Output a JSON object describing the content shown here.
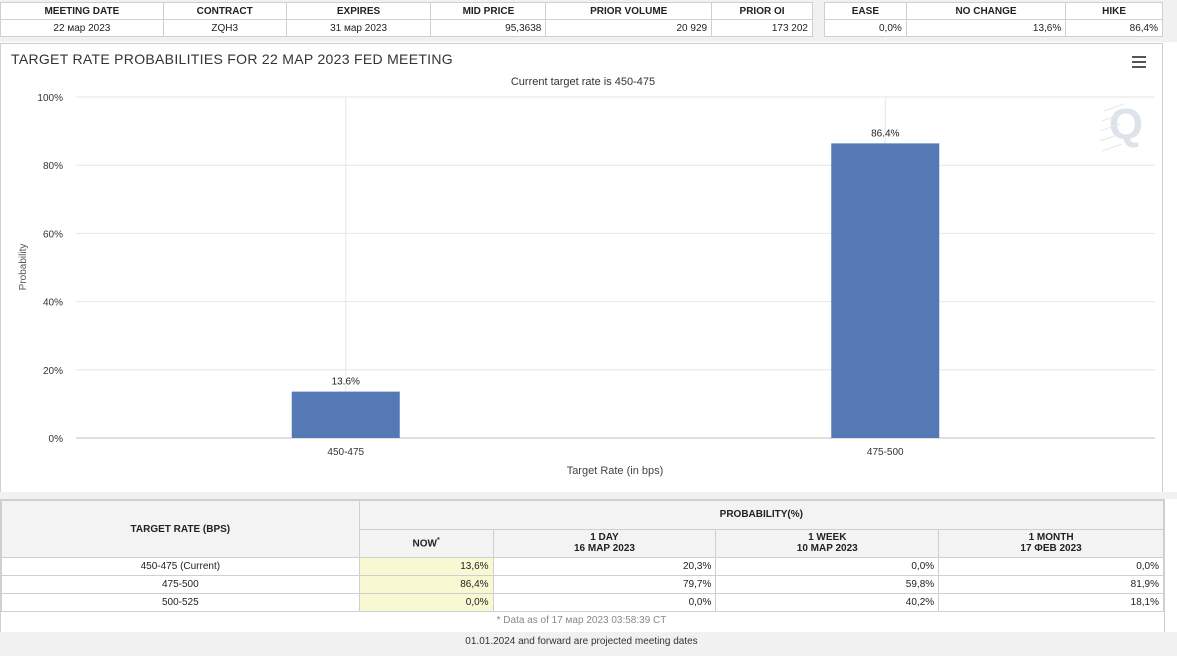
{
  "top_table": {
    "headers": [
      "MEETING DATE",
      "CONTRACT",
      "EXPIRES",
      "MID PRICE",
      "PRIOR VOLUME",
      "PRIOR OI"
    ],
    "values": [
      "22 мар 2023",
      "ZQH3",
      "31 мар 2023",
      "95,3638",
      "20 929",
      "173 202"
    ]
  },
  "outcome_table": {
    "headers": [
      "EASE",
      "NO CHANGE",
      "HIKE"
    ],
    "values": [
      "0,0%",
      "13,6%",
      "86,4%"
    ]
  },
  "chart_panel": {
    "menu_icon": "hamburger-menu-icon",
    "watermark_icon": "q-logo-icon"
  },
  "chart_data": {
    "type": "bar",
    "title": "TARGET RATE PROBABILITIES FOR 22 MAP 2023 FED MEETING",
    "subtitle": "Current target rate is 450-475",
    "xlabel": "Target Rate (in bps)",
    "ylabel": "Probability",
    "categories": [
      "450-475",
      "475-500"
    ],
    "values": [
      13.6,
      86.4
    ],
    "data_labels": [
      "13.6%",
      "86.4%"
    ],
    "ylim": [
      0,
      100
    ],
    "yticks": [
      "0%",
      "20%",
      "40%",
      "60%",
      "80%",
      "100%"
    ],
    "grid": true,
    "bar_color": "#5479b4"
  },
  "prob_table": {
    "col1_header": "TARGET RATE (BPS)",
    "group_header": "PROBABILITY(%)",
    "now_header": "NOW",
    "now_marker": "*",
    "periods": [
      {
        "label": "1 DAY",
        "date": "16 MAP 2023"
      },
      {
        "label": "1 WEEK",
        "date": "10 MAP 2023"
      },
      {
        "label": "1 MONTH",
        "date": "17 ФЕВ 2023"
      }
    ],
    "rows": [
      {
        "rate": "450-475 (Current)",
        "now": "13,6%",
        "day": "20,3%",
        "week": "0,0%",
        "month": "0,0%"
      },
      {
        "rate": "475-500",
        "now": "86,4%",
        "day": "79,7%",
        "week": "59,8%",
        "month": "81,9%"
      },
      {
        "rate": "500-525",
        "now": "0,0%",
        "day": "0,0%",
        "week": "40,2%",
        "month": "18,1%"
      }
    ],
    "footnote": "* Data as of 17 мар 2023 03:58:39 CT",
    "projected_note": "01.01.2024 and forward are projected meeting dates"
  }
}
